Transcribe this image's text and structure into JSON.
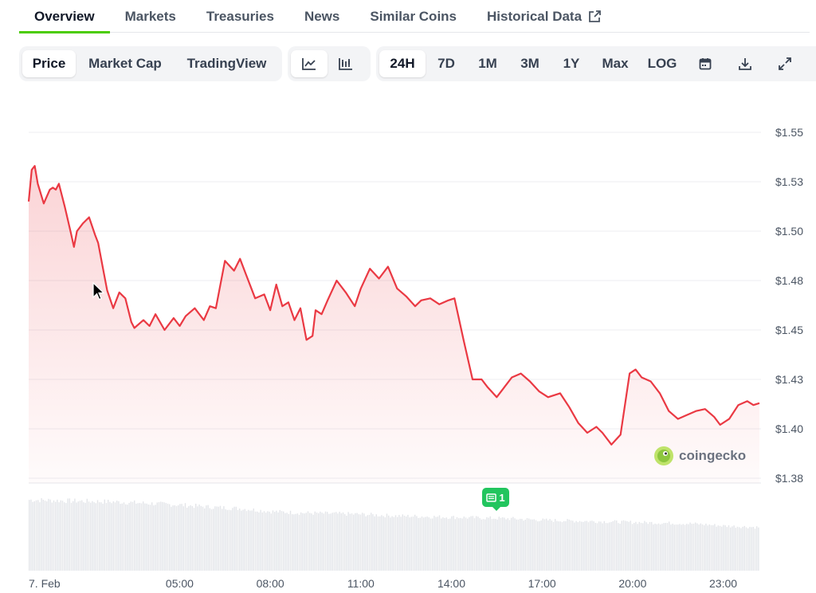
{
  "nav": {
    "tabs": [
      {
        "label": "Overview",
        "active": true
      },
      {
        "label": "Markets"
      },
      {
        "label": "Treasuries"
      },
      {
        "label": "News"
      },
      {
        "label": "Similar Coins"
      },
      {
        "label": "Historical Data",
        "icon": "external-link-icon"
      }
    ]
  },
  "toolbar": {
    "metric_tabs": [
      "Price",
      "Market Cap",
      "TradingView"
    ],
    "active_metric": "Price",
    "chart_types": [
      {
        "icon": "line-chart-icon",
        "active": true
      },
      {
        "icon": "candlestick-chart-icon",
        "active": false
      }
    ],
    "ranges": [
      "24H",
      "7D",
      "1M",
      "3M",
      "1Y",
      "Max",
      "LOG"
    ],
    "active_range": "24H",
    "actions": [
      "calendar-icon",
      "download-icon",
      "expand-icon"
    ]
  },
  "chart_data": {
    "type": "area",
    "x_labels": [
      "7. Feb",
      "05:00",
      "08:00",
      "11:00",
      "14:00",
      "17:00",
      "20:00",
      "23:00"
    ],
    "x_hours": [
      0,
      5,
      8,
      11,
      14,
      17,
      20,
      23
    ],
    "y_tick_labels": [
      "$1.55",
      "$1.53",
      "$1.50",
      "$1.48",
      "$1.45",
      "$1.43",
      "$1.40",
      "$1.38"
    ],
    "y_tick_values": [
      1.55,
      1.525,
      1.5,
      1.475,
      1.45,
      1.425,
      1.4,
      1.375
    ],
    "ylim": [
      1.375,
      1.55
    ],
    "xlim": [
      0,
      24.2
    ],
    "price_series": {
      "x": [
        0,
        0.1,
        0.2,
        0.3,
        0.5,
        0.7,
        0.8,
        0.9,
        1.0,
        1.2,
        1.4,
        1.5,
        1.6,
        1.8,
        2.0,
        2.2,
        2.3,
        2.5,
        2.6,
        2.8,
        3.0,
        3.2,
        3.4,
        3.5,
        3.8,
        4.0,
        4.2,
        4.5,
        4.8,
        5.0,
        5.2,
        5.5,
        5.8,
        6.0,
        6.2,
        6.5,
        6.8,
        7.0,
        7.2,
        7.5,
        7.8,
        8.0,
        8.2,
        8.4,
        8.6,
        8.8,
        9.0,
        9.2,
        9.4,
        9.5,
        9.7,
        9.9,
        10.2,
        10.5,
        10.8,
        11.0,
        11.3,
        11.6,
        11.9,
        12.2,
        12.5,
        12.8,
        13.0,
        13.3,
        13.6,
        13.9,
        14.1,
        14.4,
        14.7,
        15.0,
        15.2,
        15.5,
        15.7,
        16.0,
        16.3,
        16.6,
        16.9,
        17.2,
        17.6,
        17.9,
        18.2,
        18.5,
        18.8,
        19.0,
        19.3,
        19.6,
        19.9,
        20.1,
        20.3,
        20.6,
        20.9,
        21.2,
        21.5,
        21.8,
        22.1,
        22.4,
        22.7,
        22.9,
        23.2,
        23.5,
        23.8,
        24.0,
        24.2
      ],
      "y": [
        1.515,
        1.531,
        1.533,
        1.524,
        1.514,
        1.521,
        1.522,
        1.521,
        1.524,
        1.512,
        1.499,
        1.492,
        1.5,
        1.504,
        1.507,
        1.498,
        1.494,
        1.478,
        1.47,
        1.461,
        1.469,
        1.466,
        1.454,
        1.451,
        1.455,
        1.452,
        1.458,
        1.45,
        1.456,
        1.452,
        1.457,
        1.461,
        1.455,
        1.462,
        1.461,
        1.485,
        1.48,
        1.486,
        1.478,
        1.466,
        1.468,
        1.46,
        1.473,
        1.462,
        1.464,
        1.455,
        1.461,
        1.445,
        1.447,
        1.46,
        1.458,
        1.465,
        1.475,
        1.469,
        1.462,
        1.471,
        1.481,
        1.476,
        1.482,
        1.471,
        1.467,
        1.462,
        1.465,
        1.466,
        1.463,
        1.465,
        1.466,
        1.445,
        1.425,
        1.425,
        1.421,
        1.416,
        1.42,
        1.426,
        1.428,
        1.424,
        1.419,
        1.416,
        1.418,
        1.411,
        1.403,
        1.398,
        1.401,
        1.398,
        1.392,
        1.397,
        1.428,
        1.43,
        1.426,
        1.424,
        1.418,
        1.409,
        1.405,
        1.407,
        1.409,
        1.41,
        1.406,
        1.402,
        1.405,
        1.412,
        1.414,
        1.412,
        1.413
      ]
    },
    "volume_series": {
      "x": [
        0,
        1,
        2,
        3,
        4,
        5,
        6,
        7,
        8,
        9,
        10,
        11,
        12,
        13,
        14,
        15,
        16,
        17,
        18,
        19,
        20,
        21,
        22,
        23,
        24.2
      ],
      "v": [
        0.98,
        0.97,
        0.96,
        0.95,
        0.93,
        0.91,
        0.88,
        0.86,
        0.82,
        0.8,
        0.79,
        0.78,
        0.76,
        0.75,
        0.74,
        0.73,
        0.72,
        0.7,
        0.69,
        0.68,
        0.67,
        0.66,
        0.65,
        0.62,
        0.6
      ]
    },
    "line_color": "#ea3943",
    "grid": true,
    "news_marker": {
      "label": "1",
      "hour": 15.1
    },
    "watermark": "coingecko"
  }
}
